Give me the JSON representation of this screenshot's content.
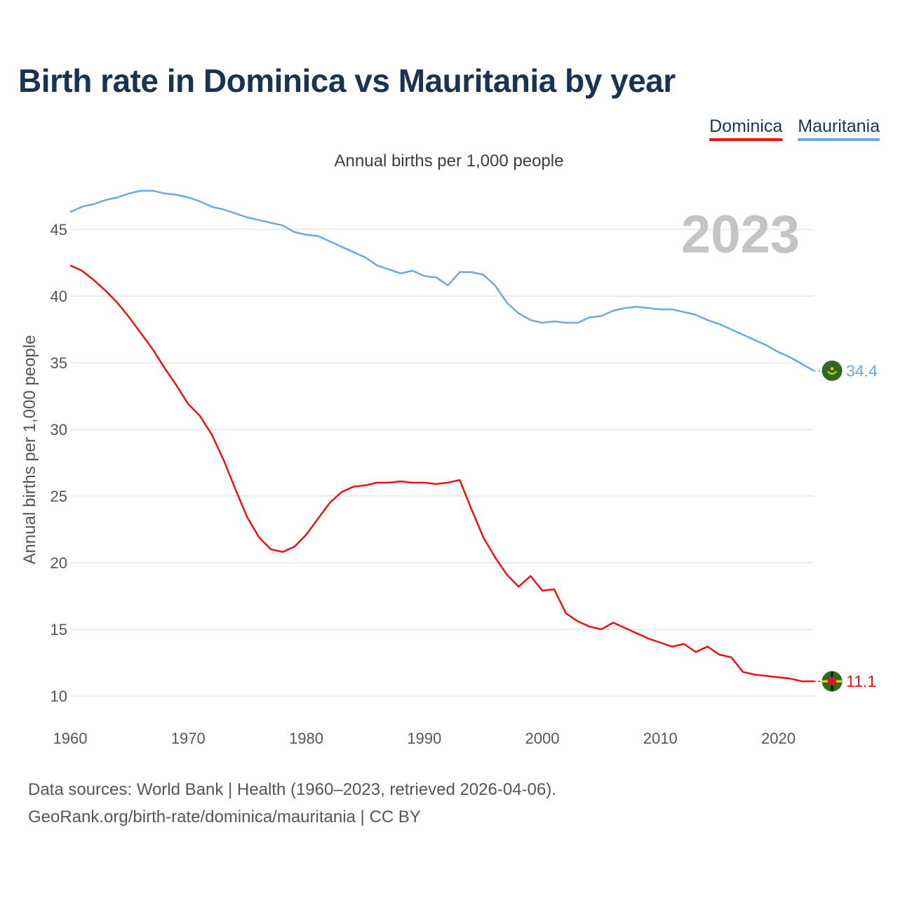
{
  "title": "Birth rate in Dominica vs Mauritania by year",
  "subtitle": "Annual births per 1,000 people",
  "legend": [
    {
      "label": "Dominica",
      "color": "#ee1111"
    },
    {
      "label": "Mauritania",
      "color": "#6aa9e6"
    }
  ],
  "footer": {
    "line1": "Data sources: World Bank | Health (1960–2023, retrieved 2026-04-06).",
    "line2": "GeoRank.org/birth-rate/dominica/mauritania | CC BY"
  },
  "chart_data": {
    "type": "line",
    "title": "Birth rate in Dominica vs Mauritania by year",
    "ylabel": "Annual births per 1,000 people",
    "xlabel": "",
    "year_label": "2023",
    "xlim": [
      1960,
      2023
    ],
    "ylim": [
      10,
      48
    ],
    "x_ticks": [
      1960,
      1970,
      1980,
      1990,
      2000,
      2010,
      2020
    ],
    "y_ticks": [
      10,
      15,
      20,
      25,
      30,
      35,
      40,
      45
    ],
    "x": [
      1960,
      1961,
      1962,
      1963,
      1964,
      1965,
      1966,
      1967,
      1968,
      1969,
      1970,
      1971,
      1972,
      1973,
      1974,
      1975,
      1976,
      1977,
      1978,
      1979,
      1980,
      1981,
      1982,
      1983,
      1984,
      1985,
      1986,
      1987,
      1988,
      1989,
      1990,
      1991,
      1992,
      1993,
      1994,
      1995,
      1996,
      1997,
      1998,
      1999,
      2000,
      2001,
      2002,
      2003,
      2004,
      2005,
      2006,
      2007,
      2008,
      2009,
      2010,
      2011,
      2012,
      2013,
      2014,
      2015,
      2016,
      2017,
      2018,
      2019,
      2020,
      2021,
      2022,
      2023
    ],
    "series": [
      {
        "name": "Dominica",
        "color": "#ee1111",
        "end_label": "11.1",
        "values": [
          42.3,
          41.9,
          41.2,
          40.4,
          39.5,
          38.4,
          37.2,
          36.0,
          34.6,
          33.3,
          31.9,
          31.0,
          29.6,
          27.7,
          25.5,
          23.4,
          21.9,
          21.0,
          20.8,
          21.2,
          22.1,
          23.3,
          24.5,
          25.3,
          25.7,
          25.8,
          26.0,
          26.0,
          26.1,
          26.0,
          26.0,
          25.9,
          26.0,
          26.2,
          24.0,
          21.9,
          20.4,
          19.1,
          18.2,
          19.0,
          17.9,
          18.0,
          16.2,
          15.6,
          15.2,
          15.0,
          15.5,
          15.1,
          14.7,
          14.3,
          14.0,
          13.7,
          13.9,
          13.3,
          13.7,
          13.1,
          12.9,
          11.8,
          11.6,
          11.5,
          11.4,
          11.3,
          11.1,
          11.1
        ]
      },
      {
        "name": "Mauritania",
        "color": "#6aa9e6",
        "end_label": "34.4",
        "values": [
          46.3,
          46.7,
          46.9,
          47.2,
          47.4,
          47.7,
          47.9,
          47.9,
          47.7,
          47.6,
          47.4,
          47.1,
          46.7,
          46.5,
          46.2,
          45.9,
          45.7,
          45.5,
          45.3,
          44.8,
          44.6,
          44.5,
          44.1,
          43.7,
          43.3,
          42.9,
          42.3,
          42.0,
          41.7,
          41.9,
          41.5,
          41.4,
          40.8,
          41.8,
          41.8,
          41.6,
          40.8,
          39.5,
          38.7,
          38.2,
          38.0,
          38.1,
          38.0,
          38.0,
          38.4,
          38.5,
          38.9,
          39.1,
          39.2,
          39.1,
          39.0,
          39.0,
          38.8,
          38.6,
          38.2,
          37.9,
          37.5,
          37.1,
          36.7,
          36.3,
          35.8,
          35.4,
          34.9,
          34.4
        ]
      }
    ]
  }
}
